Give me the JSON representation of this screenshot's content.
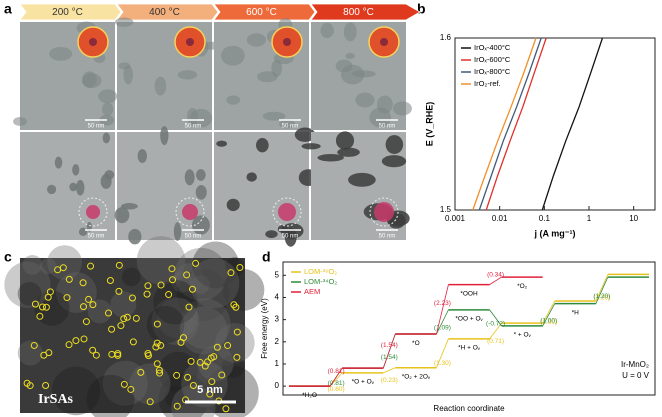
{
  "panel_labels": [
    "a",
    "b",
    "c",
    "d"
  ],
  "panel_a": {
    "temperatures": [
      "200 °C",
      "400 °C",
      "600 °C",
      "800 °C"
    ],
    "scale_bars": [
      "50 nm",
      "50 nm",
      "50 nm",
      "50 nm",
      "50 nm",
      "50 nm",
      "50 nm",
      "50 nm"
    ]
  },
  "panel_c": {
    "label": "IrSAs",
    "scale_bar": "5 nm"
  },
  "chart_data": [
    {
      "type": "line",
      "log_x": true,
      "xlabel": "j (A mg⁻¹)",
      "ylabel": "E (V_RHE)",
      "xlim": [
        0.001,
        30
      ],
      "ylim": [
        1.5,
        1.6
      ],
      "xticks": [
        0.001,
        0.01,
        0.1,
        1,
        10
      ],
      "yticks": [
        1.5,
        1.6
      ],
      "legend": "upper left",
      "series": [
        {
          "name": "IrOₓ-400°C",
          "color": "#111111",
          "x": [
            0.09,
            0.16,
            0.3,
            0.6,
            1.1,
            2
          ],
          "values": [
            1.5,
            1.52,
            1.54,
            1.56,
            1.58,
            1.6
          ]
        },
        {
          "name": "IrOₓ-600°C",
          "color": "#e0302a",
          "x": [
            0.005,
            0.009,
            0.017,
            0.033,
            0.06,
            0.11
          ],
          "values": [
            1.5,
            1.52,
            1.54,
            1.56,
            1.58,
            1.6
          ]
        },
        {
          "name": "IrOₓ-800°C",
          "color": "#3f5a78",
          "x": [
            0.0035,
            0.0065,
            0.012,
            0.024,
            0.046,
            0.085
          ],
          "values": [
            1.5,
            1.52,
            1.54,
            1.56,
            1.58,
            1.6
          ]
        },
        {
          "name": "IrO₂-ref.",
          "color": "#f0902a",
          "x": [
            0.0025,
            0.0047,
            0.009,
            0.018,
            0.035,
            0.065
          ],
          "values": [
            1.5,
            1.52,
            1.54,
            1.56,
            1.58,
            1.6
          ]
        }
      ]
    },
    {
      "type": "energy",
      "xlabel": "Reaction coordinate",
      "ylabel": "Free energy (eV)",
      "ylim": [
        -0.4,
        5.6
      ],
      "yticks": [
        0,
        1,
        2,
        3,
        4,
        5
      ],
      "annotations": [
        "Ir-MnO₂",
        "U = 0 V"
      ],
      "series": [
        {
          "name": "LOM-³⁶O₂",
          "color": "#e8c21a",
          "values": [
            0.6,
            0.23,
            1.3,
            0.71,
            1.0,
            1.2
          ],
          "value_labels": [
            "(0.60)",
            "(0.23)",
            "(1.30)",
            "(0.71)",
            "(1.00)",
            "(1.20)"
          ],
          "states": [
            null,
            "*O + Oᵥ",
            "*O₂ + 2Oᵥ",
            "*H + Oᵥ",
            null,
            null,
            null
          ]
        },
        {
          "name": "LOM-³⁴O₂",
          "color": "#2e8b3a",
          "values": [
            0.81,
            1.54,
            1.09,
            -0.72,
            1.0,
            1.2
          ],
          "value_labels": [
            "(0.81)",
            "(1.54)",
            "(1.09)",
            "(-0.72)",
            "(1.00)",
            "(1.20)"
          ],
          "states": [
            null,
            null,
            null,
            "*OO + Oᵥ",
            "* + Oᵥ",
            "*H",
            null
          ]
        },
        {
          "name": "AEM",
          "color": "#e0203a",
          "values": [
            0.81,
            1.54,
            2.23,
            0.34
          ],
          "value_labels": [
            "(0.81)",
            "(1.54)",
            "(2.23)",
            "(0.34)"
          ],
          "states": [
            "*H₂O",
            null,
            "*O",
            "*OOH",
            "*O₂"
          ]
        }
      ]
    }
  ]
}
